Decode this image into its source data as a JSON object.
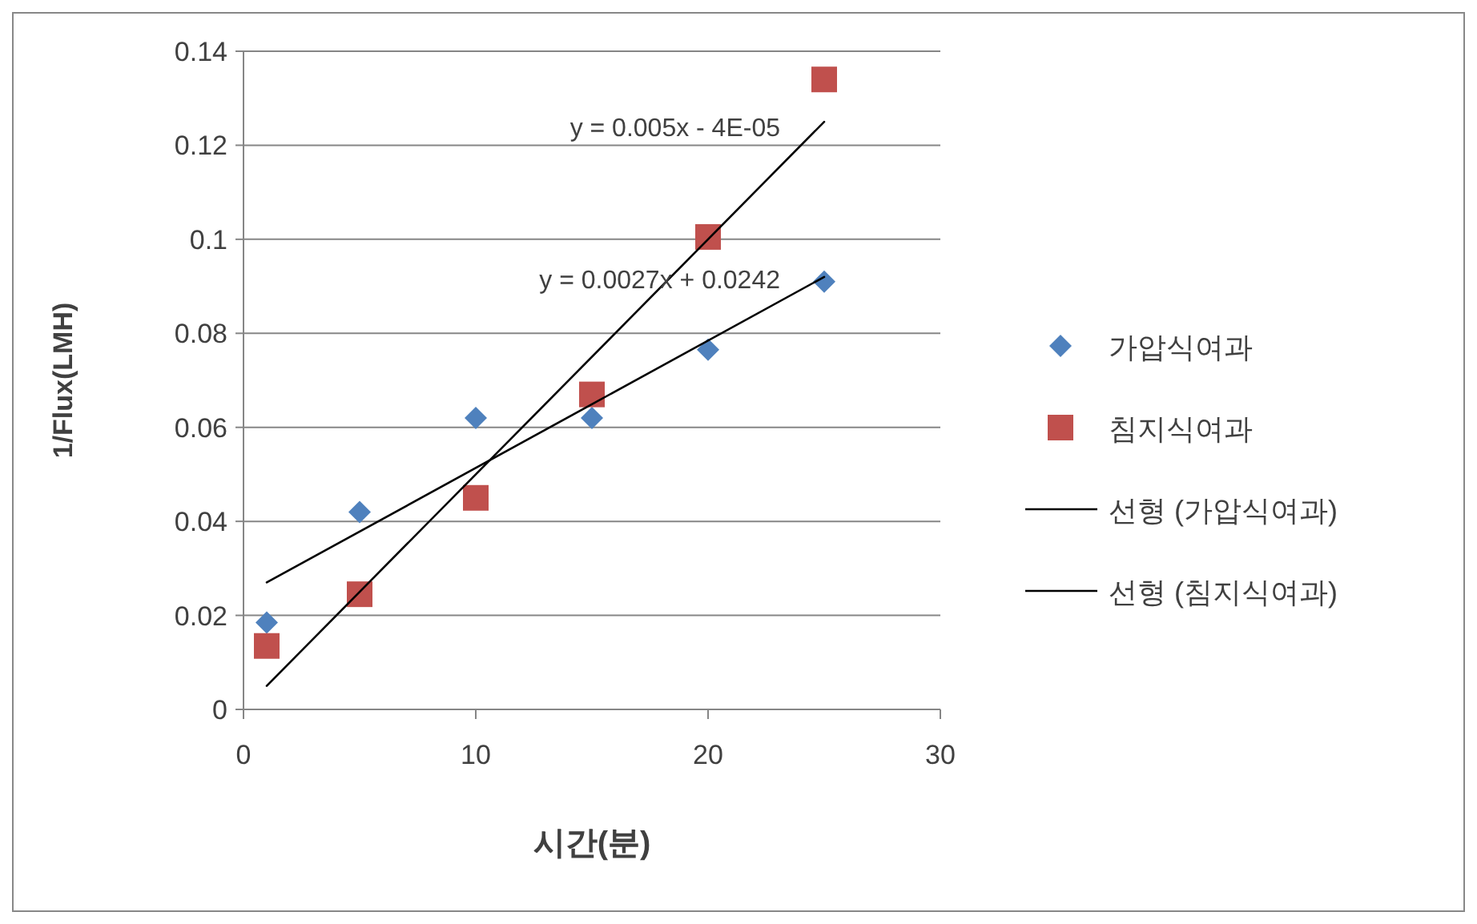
{
  "chart_data": {
    "type": "scatter",
    "xlabel": "시간(분)",
    "ylabel": "1/Flux(LMH)",
    "xlim": [
      0,
      30
    ],
    "xticks": [
      0,
      10,
      20,
      30
    ],
    "ylim": [
      0,
      0.14
    ],
    "yticks": [
      0,
      0.02,
      0.04,
      0.06,
      0.08,
      0.1,
      0.12,
      0.14
    ],
    "grid": "y",
    "legend": "right",
    "series": [
      {
        "name": "가압식여과",
        "marker": "diamond",
        "color": "#4f81bd",
        "x": [
          1,
          5,
          10,
          15,
          20,
          25
        ],
        "values": [
          0.0185,
          0.042,
          0.062,
          0.062,
          0.0765,
          0.091
        ]
      },
      {
        "name": "침지식여과",
        "marker": "square",
        "color": "#c0504d",
        "x": [
          1,
          5,
          10,
          15,
          20,
          25
        ],
        "values": [
          0.0135,
          0.0245,
          0.045,
          0.067,
          0.1005,
          0.134
        ]
      },
      {
        "name": "선형 (가압식여과)",
        "type": "line",
        "marker": "none",
        "color": "#000000",
        "x": [
          1,
          25
        ],
        "values": [
          0.027,
          0.092
        ]
      },
      {
        "name": "선형 (침지식여과)",
        "type": "line",
        "marker": "none",
        "color": "#000000",
        "x": [
          1,
          25
        ],
        "values": [
          0.005,
          0.125
        ]
      }
    ],
    "annotations": [
      "y = 0.005x - 4E-05",
      "y = 0.0027x + 0.0242"
    ]
  }
}
